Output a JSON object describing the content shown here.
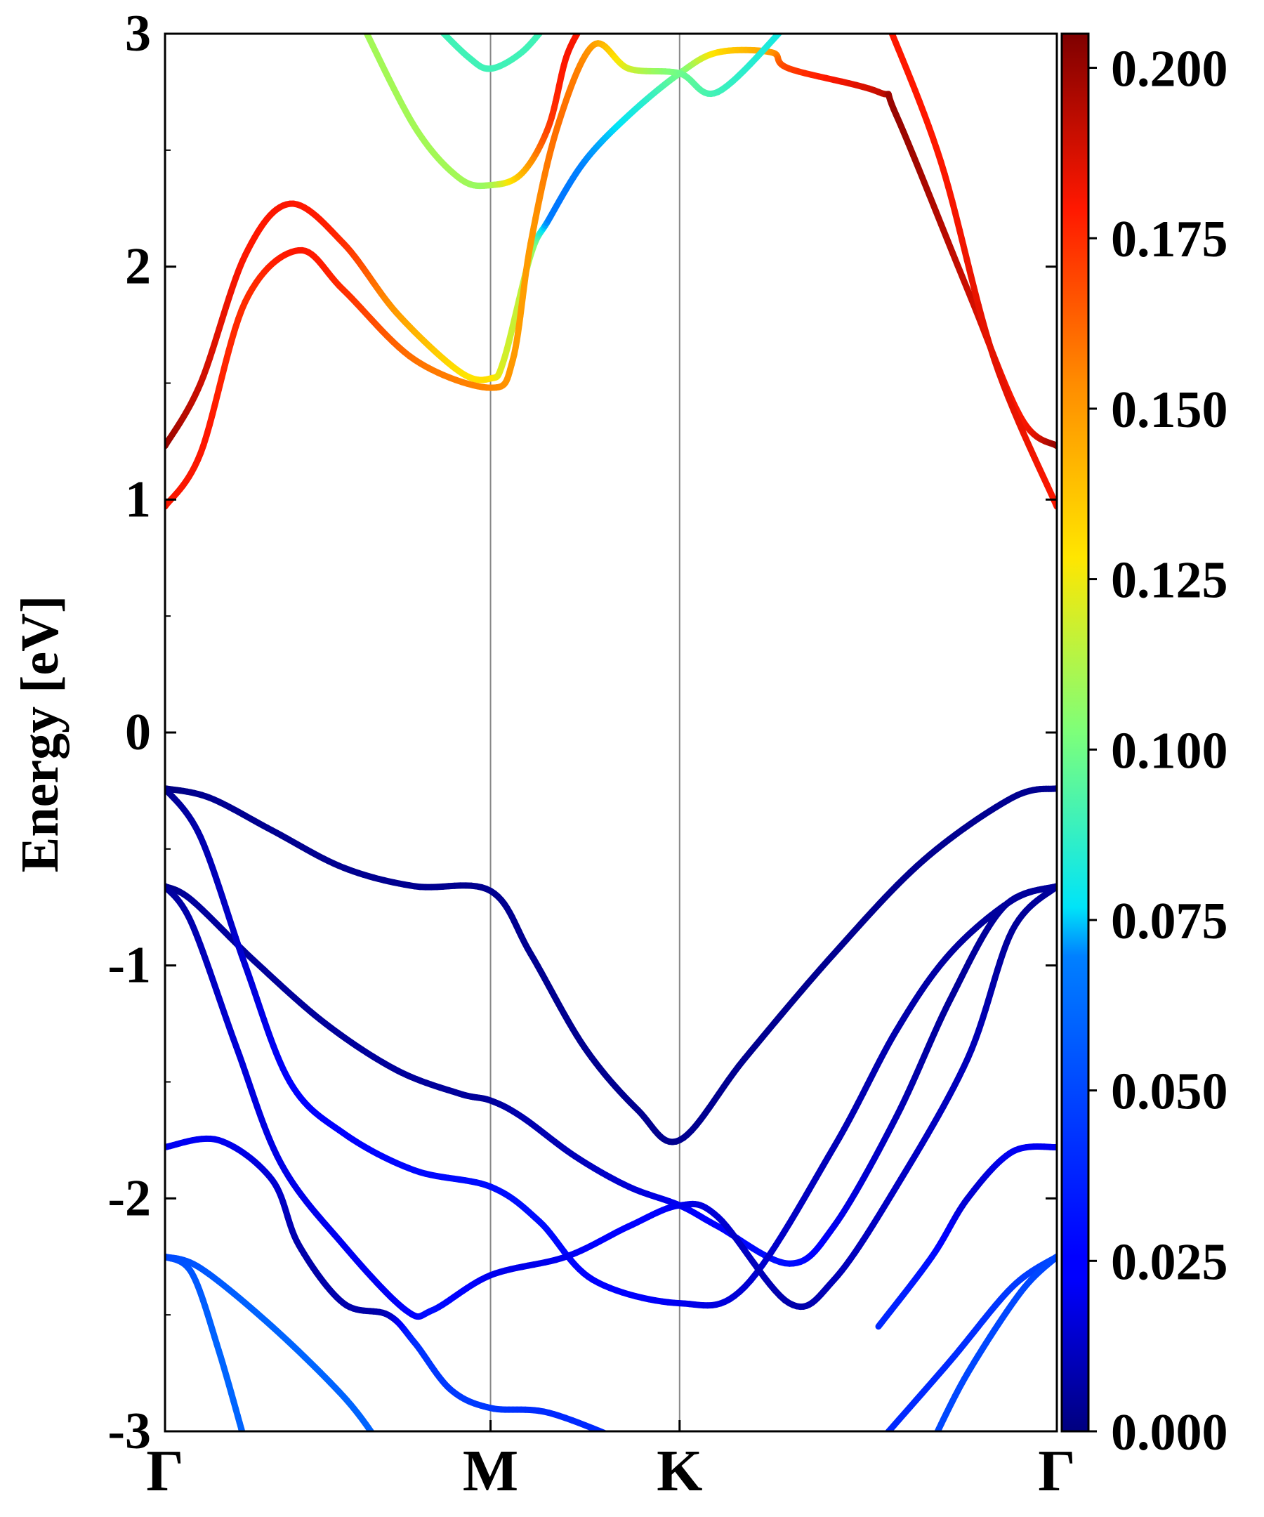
{
  "chart_data": {
    "type": "line",
    "ylabel": "Energy [eV]",
    "xlabel": "",
    "title": "",
    "ylim": [
      -3,
      3
    ],
    "yticks": [
      -3,
      -2,
      -1,
      0,
      1,
      2,
      3
    ],
    "xticks": [
      {
        "label": "Γ",
        "k": 0.0
      },
      {
        "label": "M",
        "k": 0.365
      },
      {
        "label": "K",
        "k": 0.577
      },
      {
        "label": "Γ",
        "k": 1.0
      }
    ],
    "kpath_vertical_lines": [
      0.365,
      0.577
    ],
    "grid": false,
    "colorbar": {
      "min": 0.0,
      "max": 0.205,
      "ticks": [
        "0.000",
        "0.025",
        "0.050",
        "0.075",
        "0.100",
        "0.125",
        "0.150",
        "0.175",
        "0.200"
      ],
      "colormap": "jet"
    },
    "series": [
      {
        "points": [
          [
            0,
            -0.24,
            0
          ],
          [
            0.05,
            -0.28,
            0.003
          ],
          [
            0.12,
            -0.42,
            0.003
          ],
          [
            0.2,
            -0.58,
            0.003
          ],
          [
            0.28,
            -0.66,
            0.003
          ],
          [
            0.365,
            -0.68,
            0.003
          ],
          [
            0.41,
            -0.95,
            0.003
          ],
          [
            0.47,
            -1.35,
            0.003
          ],
          [
            0.53,
            -1.62,
            0.003
          ],
          [
            0.577,
            -1.75,
            0.003
          ],
          [
            0.65,
            -1.4,
            0.003
          ],
          [
            0.75,
            -0.95,
            0.003
          ],
          [
            0.85,
            -0.55,
            0.003
          ],
          [
            0.95,
            -0.28,
            0.003
          ],
          [
            1.0,
            -0.24,
            0.003
          ]
        ]
      },
      {
        "points": [
          [
            0,
            -0.66,
            0
          ],
          [
            0.03,
            -0.72,
            0.005
          ],
          [
            0.1,
            -0.98,
            0.005
          ],
          [
            0.18,
            -1.25,
            0.005
          ],
          [
            0.26,
            -1.45,
            0.005
          ],
          [
            0.33,
            -1.55,
            0.005
          ],
          [
            0.365,
            -1.58,
            0.005
          ],
          [
            0.4,
            -1.65,
            0.008
          ],
          [
            0.46,
            -1.82,
            0.01
          ],
          [
            0.52,
            -1.95,
            0.015
          ],
          [
            0.577,
            -2.03,
            0.02
          ],
          [
            0.62,
            -2.12,
            0.025
          ],
          [
            0.7,
            -2.28,
            0.03
          ],
          [
            0.75,
            -2.12,
            0.02
          ],
          [
            0.82,
            -1.65,
            0.01
          ],
          [
            0.88,
            -1.15,
            0.005
          ],
          [
            0.94,
            -0.75,
            0.005
          ],
          [
            1.0,
            -0.66,
            0.005
          ]
        ]
      },
      {
        "points": [
          [
            0,
            -0.24,
            0.003
          ],
          [
            0.04,
            -0.45,
            0.008
          ],
          [
            0.09,
            -1.0,
            0.015
          ],
          [
            0.14,
            -1.5,
            0.022
          ],
          [
            0.2,
            -1.72,
            0.025
          ],
          [
            0.28,
            -1.88,
            0.028
          ],
          [
            0.365,
            -1.95,
            0.03
          ],
          [
            0.42,
            -2.1,
            0.03
          ],
          [
            0.48,
            -2.35,
            0.025
          ],
          [
            0.577,
            -2.45,
            0.02
          ],
          [
            0.65,
            -2.38,
            0.015
          ],
          [
            0.75,
            -1.78,
            0.01
          ],
          [
            0.82,
            -1.28,
            0.008
          ],
          [
            0.88,
            -0.95,
            0.006
          ],
          [
            0.95,
            -0.72,
            0.005
          ],
          [
            1.0,
            -0.66,
            0.005
          ]
        ]
      },
      {
        "points": [
          [
            0,
            -0.66,
            0.005
          ],
          [
            0.03,
            -0.82,
            0.008
          ],
          [
            0.08,
            -1.35,
            0.015
          ],
          [
            0.13,
            -1.85,
            0.018
          ],
          [
            0.2,
            -2.2,
            0.02
          ],
          [
            0.27,
            -2.48,
            0.022
          ],
          [
            0.3,
            -2.48,
            0.03
          ],
          [
            0.365,
            -2.33,
            0.02
          ],
          [
            0.45,
            -2.25,
            0.02
          ],
          [
            0.52,
            -2.12,
            0.025
          ],
          [
            0.577,
            -2.03,
            0.02
          ],
          [
            0.62,
            -2.08,
            0.015
          ],
          [
            0.7,
            -2.45,
            0.008
          ],
          [
            0.75,
            -2.35,
            0.01
          ],
          [
            0.82,
            -1.95,
            0.012
          ],
          [
            0.9,
            -1.4,
            0.01
          ],
          [
            0.95,
            -0.85,
            0.005
          ],
          [
            1.0,
            -0.66,
            0.005
          ]
        ]
      },
      {
        "points": [
          [
            0,
            -1.78,
            0.02
          ],
          [
            0.06,
            -1.75,
            0.02
          ],
          [
            0.12,
            -1.92,
            0.015
          ],
          [
            0.15,
            -2.2,
            0.008
          ],
          [
            0.2,
            -2.45,
            0.008
          ],
          [
            0.25,
            -2.5,
            0.01
          ],
          [
            0.28,
            -2.62,
            0.04
          ],
          [
            0.32,
            -2.82,
            0.045
          ],
          [
            0.365,
            -2.9,
            0.045
          ],
          [
            0.43,
            -2.92,
            0.04
          ],
          [
            0.52,
            -3.05,
            0.04
          ]
        ]
      },
      {
        "points": [
          [
            0.8,
            -2.55,
            0.04
          ],
          [
            0.86,
            -2.25,
            0.03
          ],
          [
            0.9,
            -2.0,
            0.015
          ],
          [
            0.95,
            -1.8,
            0.02
          ],
          [
            1.0,
            -1.78,
            0.02
          ]
        ]
      },
      {
        "points": [
          [
            0,
            -2.25,
            0.05
          ],
          [
            0.04,
            -2.3,
            0.055
          ],
          [
            0.12,
            -2.55,
            0.06
          ],
          [
            0.2,
            -2.85,
            0.06
          ],
          [
            0.24,
            -3.05,
            0.06
          ]
        ]
      },
      {
        "points": [
          [
            0.8,
            -3.05,
            0.04
          ],
          [
            0.88,
            -2.7,
            0.04
          ],
          [
            0.95,
            -2.38,
            0.045
          ],
          [
            1.0,
            -2.25,
            0.05
          ]
        ]
      },
      {
        "points": [
          [
            0,
            -2.25,
            0.05
          ],
          [
            0.03,
            -2.32,
            0.055
          ],
          [
            0.06,
            -2.65,
            0.06
          ],
          [
            0.09,
            -3.05,
            0.06
          ]
        ]
      },
      {
        "points": [
          [
            0.86,
            -3.05,
            0.05
          ],
          [
            0.9,
            -2.75,
            0.05
          ],
          [
            0.96,
            -2.4,
            0.05
          ],
          [
            1.0,
            -2.25,
            0.05
          ]
        ]
      },
      {
        "points": [
          [
            0,
            1.23,
            0.2
          ],
          [
            0.04,
            1.5,
            0.19
          ],
          [
            0.09,
            2.05,
            0.18
          ],
          [
            0.14,
            2.27,
            0.18
          ],
          [
            0.2,
            2.1,
            0.175
          ],
          [
            0.26,
            1.8,
            0.15
          ],
          [
            0.33,
            1.55,
            0.13
          ],
          [
            0.365,
            1.52,
            0.13
          ],
          [
            0.38,
            1.6,
            0.12
          ],
          [
            0.41,
            2.05,
            0.11
          ],
          [
            0.43,
            2.2,
            0.07
          ],
          [
            0.47,
            2.45,
            0.07
          ],
          [
            0.52,
            2.65,
            0.08
          ],
          [
            0.577,
            2.83,
            0.1
          ],
          [
            0.62,
            2.92,
            0.13
          ],
          [
            0.68,
            2.92,
            0.15
          ],
          [
            0.7,
            2.85,
            0.17
          ],
          [
            0.8,
            2.75,
            0.19
          ],
          [
            0.82,
            2.65,
            0.2
          ],
          [
            0.9,
            1.9,
            0.19
          ],
          [
            0.96,
            1.35,
            0.18
          ],
          [
            1.0,
            1.23,
            0.2
          ]
        ]
      },
      {
        "points": [
          [
            0,
            0.97,
            0.18
          ],
          [
            0.04,
            1.2,
            0.18
          ],
          [
            0.09,
            1.85,
            0.175
          ],
          [
            0.15,
            2.07,
            0.18
          ],
          [
            0.2,
            1.9,
            0.175
          ],
          [
            0.28,
            1.6,
            0.16
          ],
          [
            0.365,
            1.48,
            0.155
          ],
          [
            0.39,
            1.6,
            0.15
          ],
          [
            0.41,
            2.1,
            0.15
          ],
          [
            0.44,
            2.6,
            0.16
          ],
          [
            0.48,
            2.95,
            0.15
          ],
          [
            0.52,
            2.85,
            0.12
          ],
          [
            0.577,
            2.83,
            0.1
          ],
          [
            0.62,
            2.75,
            0.09
          ],
          [
            0.7,
            3.05,
            0.08
          ]
        ]
      },
      {
        "points": [
          [
            0.81,
            3.05,
            0.18
          ],
          [
            0.87,
            2.45,
            0.18
          ],
          [
            0.93,
            1.6,
            0.185
          ],
          [
            1.0,
            0.97,
            0.18
          ]
        ]
      },
      {
        "points": [
          [
            0.22,
            3.05,
            0.11
          ],
          [
            0.28,
            2.6,
            0.11
          ],
          [
            0.33,
            2.38,
            0.11
          ],
          [
            0.365,
            2.35,
            0.11
          ],
          [
            0.4,
            2.4,
            0.14
          ],
          [
            0.43,
            2.6,
            0.17
          ],
          [
            0.45,
            2.9,
            0.18
          ],
          [
            0.47,
            3.05,
            0.18
          ]
        ]
      },
      {
        "points": [
          [
            0.3,
            3.05,
            0.09
          ],
          [
            0.34,
            2.9,
            0.09
          ],
          [
            0.365,
            2.85,
            0.09
          ],
          [
            0.4,
            2.92,
            0.09
          ],
          [
            0.43,
            3.05,
            0.09
          ]
        ]
      }
    ]
  }
}
